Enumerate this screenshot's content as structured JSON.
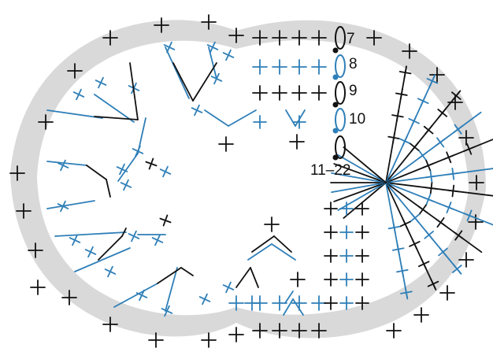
{
  "labels": {
    "row_7": "7",
    "row_8": "8",
    "row_9": "9",
    "row_10": "10",
    "rows_11_22": "11–22"
  },
  "colors": {
    "black": "#111111",
    "blue": "#2f7fb8",
    "band": "#d9d9d9",
    "background": "#ffffff"
  },
  "legend_semantics": {
    "plus": "single-crochet-stitch-icon",
    "fan": "increase-stitch-icon",
    "oval": "chain-stitch-icon",
    "dot": "slip-stitch-icon"
  }
}
